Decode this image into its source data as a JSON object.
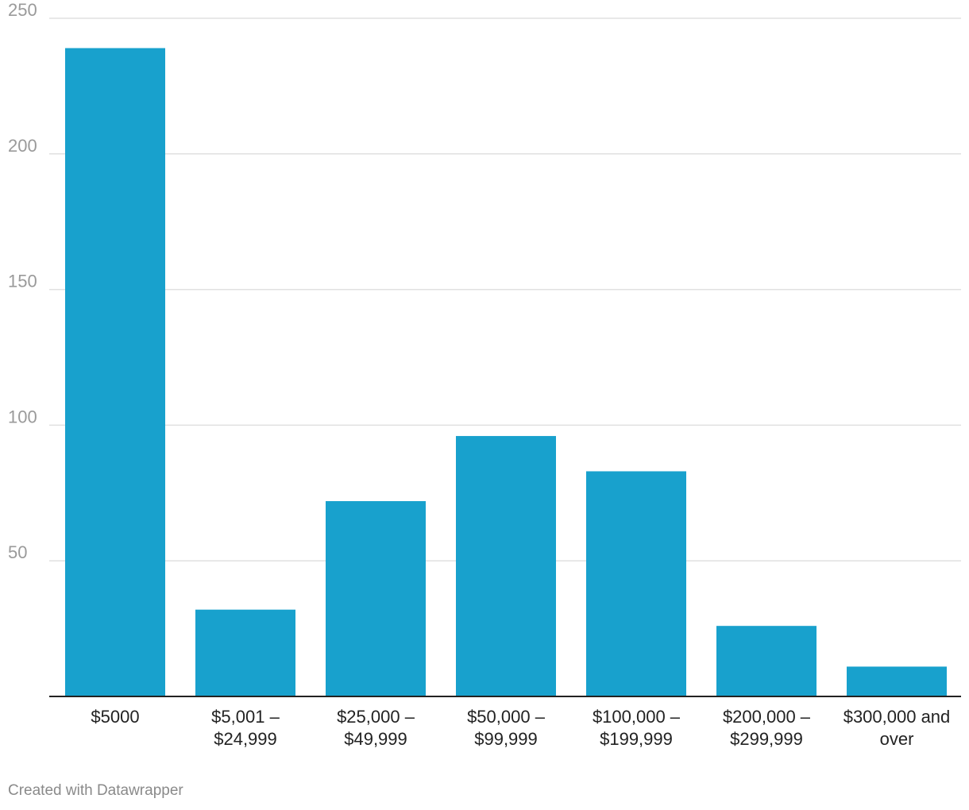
{
  "chart_data": {
    "type": "bar",
    "title": "",
    "xlabel": "",
    "ylabel": "",
    "categories": [
      [
        "$5000"
      ],
      [
        "$5,001 –",
        "$24,999"
      ],
      [
        "$25,000 –",
        "$49,999"
      ],
      [
        "$50,000 –",
        "$99,999"
      ],
      [
        "$100,000 –",
        "$199,999"
      ],
      [
        "$200,000 –",
        "$299,999"
      ],
      [
        "$300,000 and",
        "over"
      ]
    ],
    "values": [
      239,
      32,
      72,
      96,
      83,
      26,
      11
    ],
    "ylim": [
      0,
      250
    ],
    "yticks": [
      50,
      100,
      150,
      200,
      250
    ],
    "grid": true,
    "legend": "none",
    "bar_color": "#18a1cd",
    "grid_color": "#e0e0e0",
    "axis_color": "#222222",
    "tick_label_color": "#9a9a9a",
    "category_label_color": "#222222"
  },
  "footer": {
    "credit": "Created with Datawrapper"
  }
}
